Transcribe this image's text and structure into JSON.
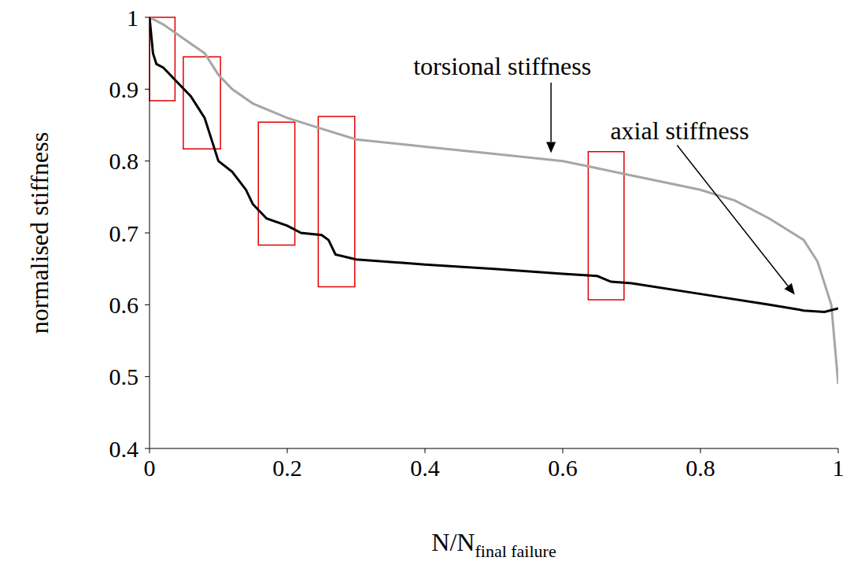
{
  "chart_data": {
    "type": "line",
    "xlabel": {
      "text": "N/N",
      "subscript": "final failure"
    },
    "ylabel": "normalised stiffness",
    "xlim": [
      0,
      1
    ],
    "ylim": [
      0.4,
      1
    ],
    "xticks": [
      0,
      0.2,
      0.4,
      0.6,
      0.8,
      1
    ],
    "yticks": [
      0.4,
      0.5,
      0.6,
      0.7,
      0.8,
      0.9,
      1
    ],
    "grid": false,
    "series": [
      {
        "name": "torsional stiffness",
        "color": "#a6a6a6",
        "x": [
          0,
          0.02,
          0.05,
          0.08,
          0.1,
          0.12,
          0.15,
          0.2,
          0.25,
          0.3,
          0.4,
          0.5,
          0.6,
          0.65,
          0.7,
          0.8,
          0.85,
          0.9,
          0.95,
          0.97,
          0.99,
          1.0
        ],
        "values": [
          1.0,
          0.99,
          0.97,
          0.95,
          0.92,
          0.9,
          0.88,
          0.86,
          0.845,
          0.83,
          0.82,
          0.81,
          0.8,
          0.79,
          0.78,
          0.76,
          0.745,
          0.72,
          0.69,
          0.66,
          0.6,
          0.49
        ]
      },
      {
        "name": "axial stiffness",
        "color": "#000000",
        "x": [
          0,
          0.005,
          0.01,
          0.02,
          0.04,
          0.06,
          0.08,
          0.1,
          0.12,
          0.14,
          0.15,
          0.17,
          0.2,
          0.22,
          0.25,
          0.26,
          0.27,
          0.3,
          0.4,
          0.5,
          0.6,
          0.65,
          0.67,
          0.7,
          0.8,
          0.9,
          0.95,
          0.98,
          1.0
        ],
        "values": [
          1.0,
          0.95,
          0.935,
          0.93,
          0.91,
          0.89,
          0.86,
          0.8,
          0.785,
          0.76,
          0.74,
          0.72,
          0.71,
          0.7,
          0.697,
          0.69,
          0.67,
          0.663,
          0.656,
          0.65,
          0.643,
          0.64,
          0.632,
          0.63,
          0.615,
          0.6,
          0.592,
          0.59,
          0.595
        ]
      }
    ],
    "annotations": [
      {
        "text": "torsional stiffness",
        "x": 0.383,
        "y": 0.92,
        "arrow": {
          "from": [
            0.583,
            0.909
          ],
          "to": [
            0.583,
            0.811
          ]
        }
      },
      {
        "text": "axial stiffness",
        "x": 0.669,
        "y": 0.83,
        "arrow": {
          "from": [
            0.766,
            0.822
          ],
          "to": [
            0.937,
            0.614
          ]
        }
      }
    ],
    "highlights": [
      {
        "x": [
          0,
          0.037
        ],
        "y": [
          0.884,
          1.0
        ]
      },
      {
        "x": [
          0.049,
          0.103
        ],
        "y": [
          0.817,
          0.945
        ]
      },
      {
        "x": [
          0.158,
          0.211
        ],
        "y": [
          0.683,
          0.854
        ]
      },
      {
        "x": [
          0.245,
          0.298
        ],
        "y": [
          0.625,
          0.862
        ]
      },
      {
        "x": [
          0.637,
          0.689
        ],
        "y": [
          0.607,
          0.813
        ]
      }
    ]
  }
}
